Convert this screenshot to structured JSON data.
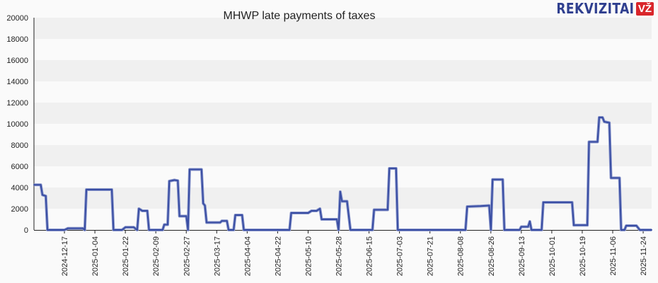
{
  "chart_data": {
    "type": "line",
    "title": "MHWP late payments of taxes",
    "xlabel": "",
    "ylabel": "",
    "ylim": [
      0,
      20000
    ],
    "xlim": [
      "2024-11-29",
      "2025-11-29"
    ],
    "y_ticks": [
      "0",
      "2000",
      "4000",
      "6000",
      "8000",
      "10000",
      "12000",
      "14000",
      "16000",
      "18000",
      "20000"
    ],
    "x_ticks": [
      "2024-12-17",
      "2025-01-04",
      "2025-01-22",
      "2025-02-09",
      "2025-02-27",
      "2025-03-17",
      "2025-04-04",
      "2025-04-22",
      "2025-05-10",
      "2025-05-28",
      "2025-06-15",
      "2025-07-03",
      "2025-07-21",
      "2025-08-08",
      "2025-08-26",
      "2025-09-13",
      "2025-10-01",
      "2025-10-19",
      "2025-11-06",
      "2025-11-24"
    ],
    "grid": "horizontal alternating bands",
    "line_color": "#3a4ea3",
    "series": [
      {
        "points": [
          [
            "2024-11-29",
            4250
          ],
          [
            "2024-12-03",
            4250
          ],
          [
            "2024-12-04",
            3300
          ],
          [
            "2024-12-06",
            3200
          ],
          [
            "2024-12-07",
            0
          ],
          [
            "2024-12-17",
            0
          ],
          [
            "2024-12-19",
            150
          ],
          [
            "2024-12-28",
            150
          ],
          [
            "2024-12-29",
            0
          ],
          [
            "2024-12-30",
            3800
          ],
          [
            "2025-01-14",
            3800
          ],
          [
            "2025-01-15",
            0
          ],
          [
            "2025-01-20",
            0
          ],
          [
            "2025-01-22",
            250
          ],
          [
            "2025-01-27",
            250
          ],
          [
            "2025-01-29",
            0
          ],
          [
            "2025-01-30",
            2000
          ],
          [
            "2025-02-01",
            1800
          ],
          [
            "2025-02-04",
            1800
          ],
          [
            "2025-02-05",
            0
          ],
          [
            "2025-02-13",
            0
          ],
          [
            "2025-02-14",
            500
          ],
          [
            "2025-02-16",
            500
          ],
          [
            "2025-02-17",
            4600
          ],
          [
            "2025-02-20",
            4700
          ],
          [
            "2025-02-22",
            4650
          ],
          [
            "2025-02-23",
            1300
          ],
          [
            "2025-02-27",
            1300
          ],
          [
            "2025-02-28",
            0
          ],
          [
            "2025-03-01",
            5700
          ],
          [
            "2025-03-08",
            5700
          ],
          [
            "2025-03-09",
            2500
          ],
          [
            "2025-03-10",
            2300
          ],
          [
            "2025-03-11",
            700
          ],
          [
            "2025-03-19",
            700
          ],
          [
            "2025-03-20",
            850
          ],
          [
            "2025-03-23",
            850
          ],
          [
            "2025-03-24",
            0
          ],
          [
            "2025-03-27",
            0
          ],
          [
            "2025-03-28",
            1400
          ],
          [
            "2025-04-01",
            1400
          ],
          [
            "2025-04-02",
            0
          ],
          [
            "2025-04-29",
            0
          ],
          [
            "2025-04-30",
            1600
          ],
          [
            "2025-05-10",
            1600
          ],
          [
            "2025-05-12",
            1800
          ],
          [
            "2025-05-15",
            1800
          ],
          [
            "2025-05-17",
            2000
          ],
          [
            "2025-05-18",
            1000
          ],
          [
            "2025-05-27",
            1000
          ],
          [
            "2025-05-28",
            0
          ],
          [
            "2025-05-29",
            3600
          ],
          [
            "2025-05-30",
            2700
          ],
          [
            "2025-06-02",
            2700
          ],
          [
            "2025-06-04",
            0
          ],
          [
            "2025-06-17",
            0
          ],
          [
            "2025-06-18",
            1900
          ],
          [
            "2025-06-26",
            1900
          ],
          [
            "2025-06-27",
            5800
          ],
          [
            "2025-07-01",
            5800
          ],
          [
            "2025-07-02",
            0
          ],
          [
            "2025-08-11",
            0
          ],
          [
            "2025-08-12",
            2200
          ],
          [
            "2025-08-20",
            2250
          ],
          [
            "2025-08-25",
            2300
          ],
          [
            "2025-08-26",
            0
          ],
          [
            "2025-08-27",
            4750
          ],
          [
            "2025-09-02",
            4750
          ],
          [
            "2025-09-03",
            0
          ],
          [
            "2025-09-12",
            0
          ],
          [
            "2025-09-13",
            300
          ],
          [
            "2025-09-17",
            300
          ],
          [
            "2025-09-18",
            800
          ],
          [
            "2025-09-19",
            0
          ],
          [
            "2025-09-25",
            0
          ],
          [
            "2025-09-26",
            2600
          ],
          [
            "2025-10-13",
            2600
          ],
          [
            "2025-10-14",
            450
          ],
          [
            "2025-10-22",
            450
          ],
          [
            "2025-10-23",
            8300
          ],
          [
            "2025-10-28",
            8300
          ],
          [
            "2025-10-29",
            10600
          ],
          [
            "2025-10-31",
            10600
          ],
          [
            "2025-11-01",
            10200
          ],
          [
            "2025-11-04",
            10100
          ],
          [
            "2025-11-05",
            4900
          ],
          [
            "2025-11-10",
            4900
          ],
          [
            "2025-11-11",
            0
          ],
          [
            "2025-11-13",
            0
          ],
          [
            "2025-11-14",
            400
          ],
          [
            "2025-11-20",
            400
          ],
          [
            "2025-11-22",
            0
          ],
          [
            "2025-11-29",
            0
          ]
        ]
      }
    ]
  },
  "logo": {
    "text": "REKVIZITAI",
    "badge": "VŽ"
  }
}
